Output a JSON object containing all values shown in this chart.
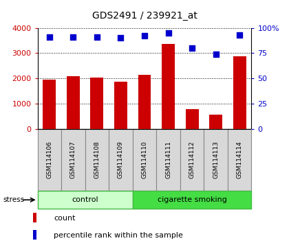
{
  "title": "GDS2491 / 239921_at",
  "samples": [
    "GSM114106",
    "GSM114107",
    "GSM114108",
    "GSM114109",
    "GSM114110",
    "GSM114111",
    "GSM114112",
    "GSM114113",
    "GSM114114"
  ],
  "counts": [
    1950,
    2080,
    2040,
    1880,
    2130,
    3360,
    770,
    560,
    2870
  ],
  "percentile_ranks": [
    91,
    91,
    91,
    90,
    92,
    95,
    80,
    74,
    93
  ],
  "groups": [
    {
      "label": "control",
      "indices": [
        0,
        1,
        2,
        3
      ],
      "color": "#ccffcc",
      "edge": "#44bb44"
    },
    {
      "label": "cigarette smoking",
      "indices": [
        4,
        5,
        6,
        7,
        8
      ],
      "color": "#44dd44",
      "edge": "#44bb44"
    }
  ],
  "bar_color": "#cc0000",
  "dot_color": "#0000cc",
  "ylim_left": [
    0,
    4000
  ],
  "ylim_right": [
    0,
    100
  ],
  "yticks_left": [
    0,
    1000,
    2000,
    3000,
    4000
  ],
  "ytick_labels_left": [
    "0",
    "1000",
    "2000",
    "3000",
    "4000"
  ],
  "yticks_right": [
    0,
    25,
    50,
    75,
    100
  ],
  "ytick_labels_right": [
    "0",
    "25",
    "50",
    "75",
    "100%"
  ],
  "stress_label": "stress",
  "legend_count_label": "count",
  "legend_pct_label": "percentile rank within the sample",
  "plot_bg_color": "#ffffff"
}
